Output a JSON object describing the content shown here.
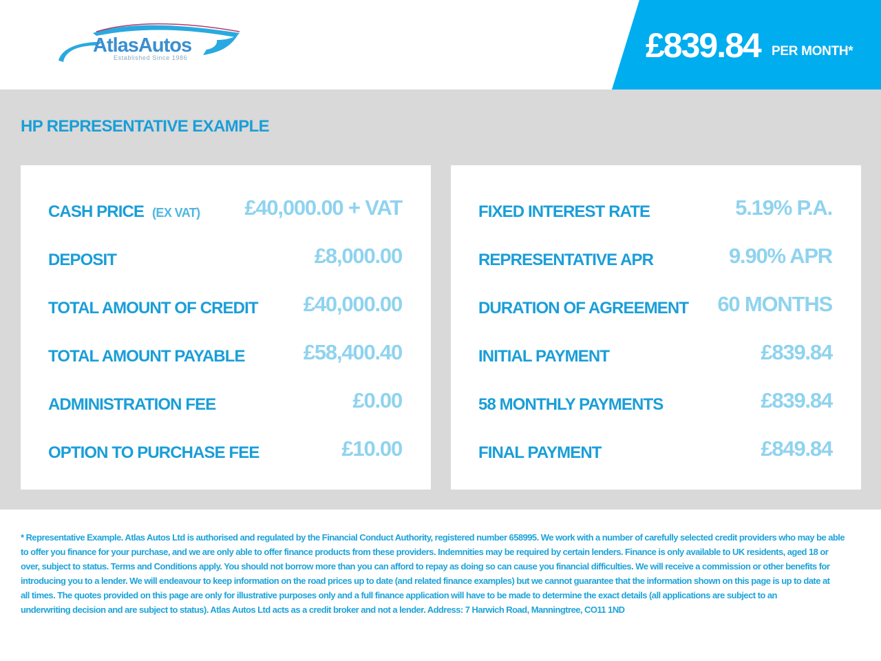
{
  "brand": {
    "name": "AtlasAutos",
    "tagline": "Established Since 1986"
  },
  "header": {
    "monthly_price": "£839.84",
    "per_month_label": "PER MONTH*"
  },
  "section_title": "HP REPRESENTATIVE EXAMPLE",
  "left_panel": [
    {
      "label": "CASH PRICE",
      "sub": "(EX VAT)",
      "value": "£40,000.00 + VAT"
    },
    {
      "label": "DEPOSIT",
      "value": "£8,000.00"
    },
    {
      "label": "TOTAL AMOUNT OF CREDIT",
      "value": "£40,000.00"
    },
    {
      "label": "TOTAL AMOUNT PAYABLE",
      "value": "£58,400.40"
    },
    {
      "label": "ADMINISTRATION FEE",
      "value": "£0.00"
    },
    {
      "label": "OPTION TO PURCHASE FEE",
      "value": "£10.00"
    }
  ],
  "right_panel": [
    {
      "label": "FIXED INTEREST RATE",
      "value": "5.19% P.A."
    },
    {
      "label": "REPRESENTATIVE APR",
      "value": "9.90% APR"
    },
    {
      "label": "DURATION OF AGREEMENT",
      "value": "60 MONTHS"
    },
    {
      "label": "INITIAL PAYMENT",
      "value": "£839.84"
    },
    {
      "label": "58 MONTHLY PAYMENTS",
      "value": "£839.84"
    },
    {
      "label": "FINAL PAYMENT",
      "value": "£849.84"
    }
  ],
  "footer_lines": [
    "* Representative Example. Atlas Autos Ltd is authorised and regulated by the Financial Conduct Authority, registered number 658995. We work with a number of carefully selected credit providers who may be able",
    "to offer you finance for your purchase, and we are only able to offer finance products from these providers. Indemnities may be required by certain lenders. Finance is only available to UK residents, aged 18 or",
    "over, subject to status. Terms and Conditions apply. You should not borrow more than you can afford to repay as doing so can cause you financial difficulties. We will receive a commission or other benefits for",
    "introducing you to a lender. We will endeavour to keep information on the road prices up to date (and related finance examples) but we cannot guarantee that the information shown on this page is up to date at",
    "all times. The quotes provided on this page are only for illustrative purposes only and a full finance application will have to be made to determine the exact details (all applications are subject to an",
    "underwriting decision and are subject to status). Atlas Autos Ltd acts as a credit broker and not a lender. Address: 7 Harwich Road, Manningtree, CO11 1ND"
  ],
  "colors": {
    "brand_blue": "#00adef",
    "label_blue": "#1a9ed8",
    "value_blue": "#8fd3ef",
    "background_grey": "#d9d9d9"
  }
}
